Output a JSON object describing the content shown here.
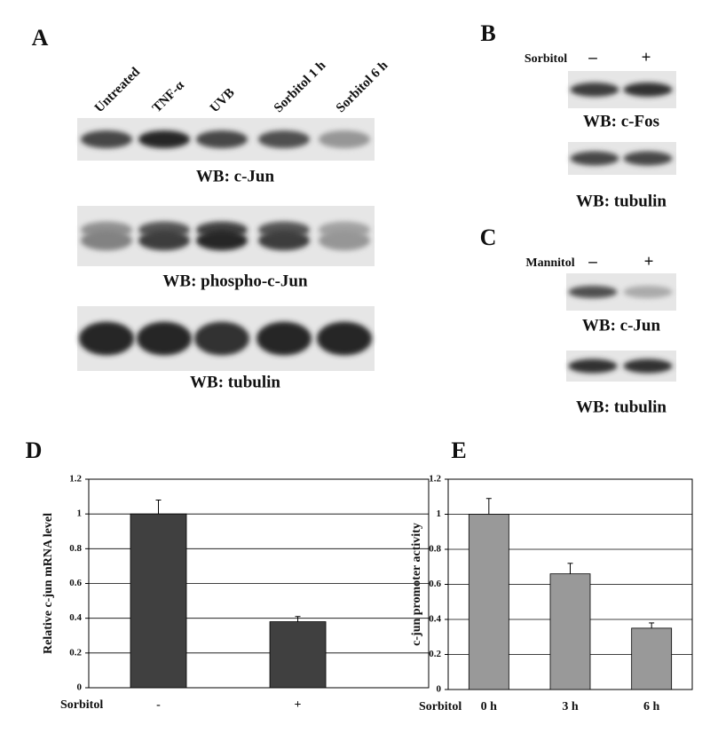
{
  "panels": {
    "A": {
      "label": "A",
      "lanes": [
        "Untreated",
        "TNF-α",
        "UVB",
        "Sorbitol 1 h",
        "Sorbitol 6 h"
      ],
      "blots": [
        "WB: c-Jun",
        "WB: phospho-c-Jun",
        "WB: tubulin"
      ]
    },
    "B": {
      "label": "B",
      "treatment": "Sorbitol",
      "conditions": [
        "–",
        "+"
      ],
      "blots": [
        "WB: c-Fos",
        "WB: tubulin"
      ]
    },
    "C": {
      "label": "C",
      "treatment": "Mannitol",
      "conditions": [
        "–",
        "+"
      ],
      "blots": [
        "WB: c-Jun",
        "WB: tubulin"
      ]
    }
  },
  "chart_data": [
    {
      "type": "bar",
      "label": "D",
      "ylabel": "Relative c-jun mRNA level",
      "xlabel": "Sorbitol",
      "categories": [
        "-",
        "+"
      ],
      "values": [
        1.0,
        0.38
      ],
      "errors": [
        0.08,
        0.03
      ],
      "color": "#404040",
      "ylim": [
        0,
        1.2
      ],
      "yticks": [
        0,
        0.2,
        0.4,
        0.6,
        0.8,
        1,
        1.2
      ],
      "grid": true
    },
    {
      "type": "bar",
      "label": "E",
      "ylabel": "c-jun promoter activity",
      "xlabel": "Sorbitol",
      "categories": [
        "0 h",
        "3 h",
        "6 h"
      ],
      "values": [
        1.0,
        0.66,
        0.35
      ],
      "errors": [
        0.09,
        0.06,
        0.03
      ],
      "color": "#999999",
      "ylim": [
        0,
        1.2
      ],
      "yticks": [
        0,
        0.2,
        0.4,
        0.6,
        0.8,
        1,
        1.2
      ],
      "grid": true
    }
  ]
}
